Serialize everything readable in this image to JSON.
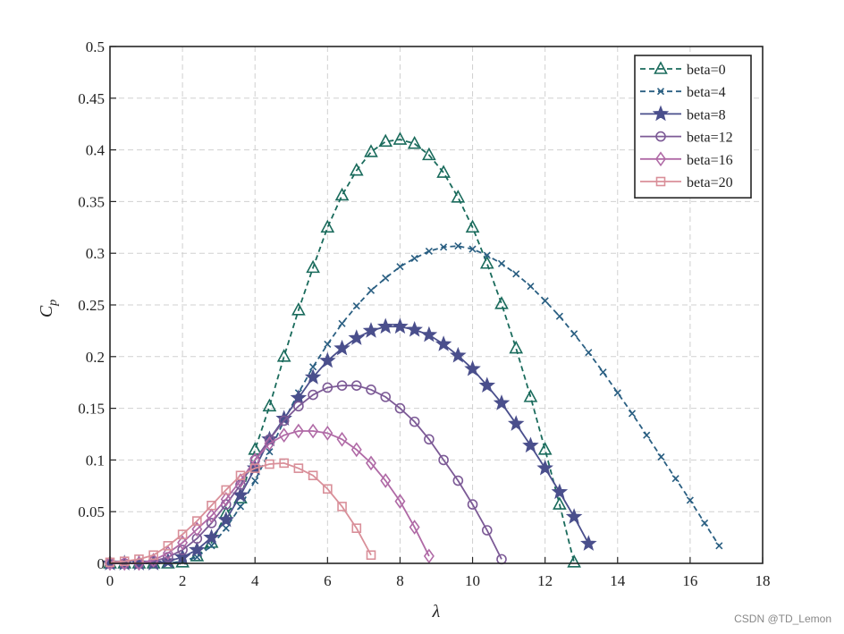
{
  "chart_data": {
    "type": "line",
    "title": "",
    "xlabel": "λ",
    "ylabel": "C",
    "ylabel_subscript": "p",
    "xlim": [
      0,
      18
    ],
    "ylim": [
      0,
      0.5
    ],
    "xticks": [
      0,
      2,
      4,
      6,
      8,
      10,
      12,
      14,
      16,
      18
    ],
    "yticks": [
      0,
      0.05,
      0.1,
      0.15,
      0.2,
      0.25,
      0.3,
      0.35,
      0.4,
      0.45,
      0.5
    ],
    "xtick_labels": [
      "0",
      "2",
      "4",
      "6",
      "8",
      "10",
      "12",
      "14",
      "16",
      "18"
    ],
    "ytick_labels": [
      "0",
      "0.05",
      "0.1",
      "0.15",
      "0.2",
      "0.25",
      "0.3",
      "0.35",
      "0.4",
      "0.45",
      "0.5"
    ],
    "grid": true,
    "legend_position": "top-right",
    "series": [
      {
        "name": "beta=0",
        "color": "#1a6b5c",
        "dash": "dashed",
        "marker": "triangle",
        "x": [
          0,
          0.4,
          0.8,
          1.2,
          1.6,
          2.0,
          2.4,
          2.8,
          3.2,
          3.6,
          4.0,
          4.4,
          4.8,
          5.2,
          5.6,
          6.0,
          6.4,
          6.8,
          7.2,
          7.6,
          8.0,
          8.4,
          8.8,
          9.2,
          9.6,
          10.0,
          10.4,
          10.8,
          11.2,
          11.6,
          12.0,
          12.4,
          12.8
        ],
        "y": [
          0,
          0,
          0,
          0,
          0,
          0.001,
          0.007,
          0.02,
          0.048,
          0.063,
          0.11,
          0.152,
          0.2,
          0.245,
          0.286,
          0.325,
          0.356,
          0.38,
          0.398,
          0.408,
          0.41,
          0.406,
          0.395,
          0.378,
          0.354,
          0.325,
          0.29,
          0.251,
          0.208,
          0.161,
          0.11,
          0.057,
          0.001
        ]
      },
      {
        "name": "beta=4",
        "color": "#2a5f82",
        "dash": "dashed",
        "marker": "x",
        "x": [
          0,
          0.4,
          0.8,
          1.2,
          1.6,
          2.0,
          2.4,
          2.8,
          3.2,
          3.6,
          4.0,
          4.4,
          4.8,
          5.2,
          5.6,
          6.0,
          6.4,
          6.8,
          7.2,
          7.6,
          8.0,
          8.4,
          8.8,
          9.2,
          9.6,
          10.0,
          10.4,
          10.8,
          11.2,
          11.6,
          12.0,
          12.4,
          12.8,
          13.2,
          13.6,
          14.0,
          14.4,
          14.8,
          15.2,
          15.6,
          16.0,
          16.4,
          16.8
        ],
        "y": [
          0,
          0,
          0,
          0,
          0,
          0.002,
          0.006,
          0.017,
          0.034,
          0.055,
          0.08,
          0.108,
          0.138,
          0.165,
          0.19,
          0.212,
          0.232,
          0.249,
          0.264,
          0.276,
          0.287,
          0.295,
          0.302,
          0.306,
          0.307,
          0.304,
          0.298,
          0.29,
          0.28,
          0.268,
          0.254,
          0.239,
          0.222,
          0.204,
          0.185,
          0.165,
          0.145,
          0.124,
          0.103,
          0.082,
          0.061,
          0.039,
          0.017
        ]
      },
      {
        "name": "beta=8",
        "color": "#4a4f8c",
        "dash": "solid",
        "marker": "star",
        "x": [
          0,
          0.4,
          0.8,
          1.2,
          1.6,
          2.0,
          2.4,
          2.8,
          3.2,
          3.6,
          4.0,
          4.4,
          4.8,
          5.2,
          5.6,
          6.0,
          6.4,
          6.8,
          7.2,
          7.6,
          8.0,
          8.4,
          8.8,
          9.2,
          9.6,
          10.0,
          10.4,
          10.8,
          11.2,
          11.6,
          12.0,
          12.4,
          12.8,
          13.2
        ],
        "y": [
          0,
          0,
          0,
          0,
          0.002,
          0.006,
          0.013,
          0.025,
          0.042,
          0.066,
          0.092,
          0.12,
          0.14,
          0.16,
          0.18,
          0.196,
          0.208,
          0.218,
          0.225,
          0.229,
          0.229,
          0.226,
          0.221,
          0.212,
          0.201,
          0.188,
          0.172,
          0.155,
          0.135,
          0.114,
          0.092,
          0.069,
          0.045,
          0.019
        ]
      },
      {
        "name": "beta=12",
        "color": "#7c5a96",
        "dash": "solid",
        "marker": "circle",
        "x": [
          0,
          0.4,
          0.8,
          1.2,
          1.6,
          2.0,
          2.4,
          2.8,
          3.2,
          3.6,
          4.0,
          4.4,
          4.8,
          5.2,
          5.6,
          6.0,
          6.4,
          6.8,
          7.2,
          7.6,
          8.0,
          8.4,
          8.8,
          9.2,
          9.6,
          10.0,
          10.4,
          10.8
        ],
        "y": [
          0,
          0,
          0,
          0.002,
          0.006,
          0.013,
          0.024,
          0.039,
          0.057,
          0.076,
          0.1,
          0.12,
          0.138,
          0.152,
          0.163,
          0.17,
          0.172,
          0.172,
          0.168,
          0.161,
          0.15,
          0.137,
          0.12,
          0.1,
          0.08,
          0.057,
          0.032,
          0.004
        ]
      },
      {
        "name": "beta=16",
        "color": "#b06aa6",
        "dash": "solid",
        "marker": "diamond",
        "x": [
          0,
          0.4,
          0.8,
          1.2,
          1.6,
          2.0,
          2.4,
          2.8,
          3.2,
          3.6,
          4.0,
          4.4,
          4.8,
          5.2,
          5.6,
          6.0,
          6.4,
          6.8,
          7.2,
          7.6,
          8.0,
          8.4,
          8.8
        ],
        "y": [
          0,
          0,
          0,
          0.003,
          0.01,
          0.02,
          0.033,
          0.046,
          0.062,
          0.08,
          0.1,
          0.116,
          0.124,
          0.128,
          0.128,
          0.126,
          0.12,
          0.11,
          0.097,
          0.08,
          0.06,
          0.035,
          0.007
        ]
      },
      {
        "name": "beta=20",
        "color": "#d98f99",
        "dash": "solid",
        "marker": "square",
        "x": [
          0,
          0.4,
          0.8,
          1.2,
          1.6,
          2.0,
          2.4,
          2.8,
          3.2,
          3.6,
          4.0,
          4.4,
          4.8,
          5.2,
          5.6,
          6.0,
          6.4,
          6.8,
          7.2
        ],
        "y": [
          0.001,
          0.002,
          0.004,
          0.008,
          0.017,
          0.028,
          0.041,
          0.056,
          0.071,
          0.085,
          0.092,
          0.096,
          0.097,
          0.092,
          0.085,
          0.072,
          0.055,
          0.034,
          0.008
        ]
      }
    ]
  },
  "watermark": "CSDN @TD_Lemon"
}
